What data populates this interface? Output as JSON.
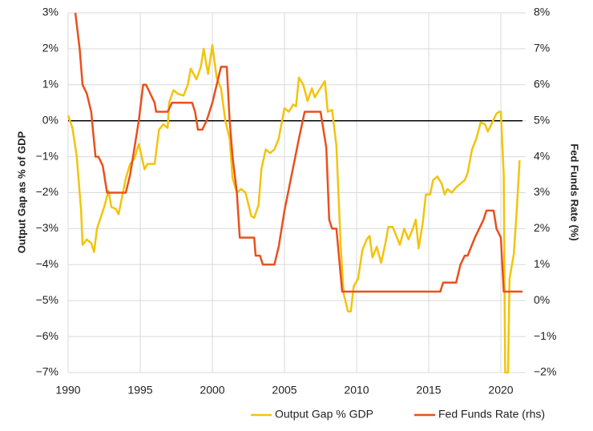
{
  "chart_data": {
    "type": "line",
    "xlim": [
      1990,
      2021.5
    ],
    "xticks": [
      1990,
      1995,
      2000,
      2005,
      2010,
      2015,
      2020
    ],
    "ylim": [
      -7,
      3
    ],
    "yticks": [
      {
        "value": -7,
        "label": "−7%"
      },
      {
        "value": -6,
        "label": "−6%"
      },
      {
        "value": -5,
        "label": "−5%"
      },
      {
        "value": -4,
        "label": "−4%"
      },
      {
        "value": -3,
        "label": "−3%"
      },
      {
        "value": -2,
        "label": "−2%"
      },
      {
        "value": -1,
        "label": "−1%"
      },
      {
        "value": 0,
        "label": "0%"
      },
      {
        "value": 1,
        "label": "1%"
      },
      {
        "value": 2,
        "label": "2%"
      },
      {
        "value": 3,
        "label": "3%"
      }
    ],
    "y2lim": [
      -2,
      8
    ],
    "y2ticks": [
      {
        "value": -2,
        "label": "−2%"
      },
      {
        "value": -1,
        "label": "−1%"
      },
      {
        "value": 0,
        "label": "0%"
      },
      {
        "value": 1,
        "label": "1%"
      },
      {
        "value": 2,
        "label": "2%"
      },
      {
        "value": 3,
        "label": "3%"
      },
      {
        "value": 4,
        "label": "4%"
      },
      {
        "value": 5,
        "label": "5%"
      },
      {
        "value": 6,
        "label": "6%"
      },
      {
        "value": 7,
        "label": "7%"
      },
      {
        "value": 8,
        "label": "8%"
      }
    ],
    "ylabel": "Output Gap as % of GDP",
    "y2label": "Fed Funds Rate (%)",
    "grid": true,
    "hline": 0,
    "legend": "bottom",
    "series": [
      {
        "name": "Output Gap % GDP",
        "color": "#f2c40c",
        "axis": "y",
        "x": [
          1990.0,
          1990.3,
          1990.6,
          1990.9,
          1991.0,
          1991.3,
          1991.6,
          1991.8,
          1992.0,
          1992.5,
          1992.8,
          1993.0,
          1993.3,
          1993.5,
          1993.8,
          1994.0,
          1994.3,
          1994.6,
          1994.9,
          1995.3,
          1995.5,
          1996.0,
          1996.3,
          1996.6,
          1996.9,
          1997.0,
          1997.3,
          1997.6,
          1998.0,
          1998.3,
          1998.5,
          1998.9,
          1999.2,
          1999.4,
          1999.7,
          2000.0,
          2000.3,
          2000.6,
          2000.9,
          2001.2,
          2001.4,
          2001.7,
          2002.0,
          2002.3,
          2002.7,
          2002.9,
          2003.2,
          2003.4,
          2003.7,
          2004.0,
          2004.3,
          2004.6,
          2005.0,
          2005.3,
          2005.6,
          2005.8,
          2006.0,
          2006.3,
          2006.6,
          2006.9,
          2007.1,
          2007.4,
          2007.8,
          2008.0,
          2008.3,
          2008.6,
          2008.9,
          2009.1,
          2009.4,
          2009.6,
          2009.8,
          2010.1,
          2010.4,
          2010.7,
          2010.9,
          2011.1,
          2011.4,
          2011.7,
          2012.0,
          2012.2,
          2012.5,
          2012.8,
          2013.0,
          2013.3,
          2013.6,
          2013.9,
          2014.1,
          2014.3,
          2014.6,
          2014.8,
          2015.1,
          2015.3,
          2015.6,
          2015.9,
          2016.1,
          2016.3,
          2016.6,
          2016.9,
          2017.2,
          2017.5,
          2017.7,
          2018.0,
          2018.3,
          2018.6,
          2018.9,
          2019.1,
          2019.4,
          2019.7,
          2019.9,
          2020.0,
          2020.2,
          2020.3,
          2020.5,
          2020.6,
          2020.9,
          2021.1,
          2021.3
        ],
        "values": [
          0.15,
          -0.2,
          -1.0,
          -2.5,
          -3.45,
          -3.3,
          -3.4,
          -3.65,
          -3.0,
          -2.4,
          -1.95,
          -2.4,
          -2.45,
          -2.6,
          -2.0,
          -1.6,
          -1.2,
          -1.05,
          -0.65,
          -1.35,
          -1.2,
          -1.2,
          -0.25,
          -0.1,
          -0.2,
          0.5,
          0.85,
          0.75,
          0.7,
          1.0,
          1.45,
          1.15,
          1.5,
          2.0,
          1.3,
          2.1,
          1.2,
          0.9,
          0.0,
          -0.5,
          -1.6,
          -2.0,
          -1.9,
          -2.0,
          -2.65,
          -2.7,
          -2.35,
          -1.35,
          -0.8,
          -0.9,
          -0.8,
          -0.5,
          0.35,
          0.25,
          0.45,
          0.4,
          1.2,
          1.0,
          0.55,
          0.9,
          0.65,
          0.85,
          1.1,
          0.25,
          0.3,
          -0.7,
          -3.5,
          -4.8,
          -5.3,
          -5.3,
          -4.6,
          -4.4,
          -3.6,
          -3.3,
          -3.2,
          -3.8,
          -3.5,
          -3.95,
          -3.4,
          -2.95,
          -2.95,
          -3.25,
          -3.45,
          -3.0,
          -3.3,
          -3.0,
          -2.75,
          -3.55,
          -2.8,
          -2.05,
          -2.05,
          -1.65,
          -1.55,
          -1.75,
          -2.05,
          -1.9,
          -2.0,
          -1.85,
          -1.75,
          -1.65,
          -1.45,
          -0.8,
          -0.5,
          -0.05,
          -0.1,
          -0.3,
          -0.05,
          0.2,
          0.25,
          0.25,
          -1.5,
          -7.0,
          -7.0,
          -4.4,
          -3.7,
          -2.5,
          -1.1
        ]
      },
      {
        "name": "Fed Funds Rate (rhs)",
        "color": "#e9501e",
        "axis": "y2",
        "x": [
          1990.5,
          1990.8,
          1991.0,
          1991.3,
          1991.6,
          1991.9,
          1992.1,
          1992.4,
          1992.7,
          1993.0,
          1994.0,
          1994.3,
          1994.6,
          1994.9,
          1995.2,
          1995.4,
          1995.7,
          1996.0,
          1996.1,
          1996.9,
          1997.2,
          1998.6,
          1998.8,
          1999.0,
          1999.3,
          1999.6,
          2000.0,
          2000.3,
          2000.6,
          2001.0,
          2001.2,
          2001.4,
          2001.7,
          2001.9,
          2002.9,
          2003.0,
          2003.3,
          2003.5,
          2004.3,
          2004.6,
          2005.0,
          2005.5,
          2006.0,
          2006.4,
          2007.5,
          2007.9,
          2008.1,
          2008.3,
          2008.6,
          2009.0,
          2015.8,
          2016.0,
          2016.9,
          2017.2,
          2017.5,
          2017.7,
          2018.2,
          2018.5,
          2018.8,
          2019.0,
          2019.5,
          2019.7,
          2020.0,
          2020.2,
          2021.5
        ],
        "values": [
          8.0,
          7.0,
          6.0,
          5.75,
          5.25,
          4.0,
          4.0,
          3.75,
          3.0,
          3.0,
          3.0,
          3.5,
          4.25,
          5.0,
          6.0,
          6.0,
          5.75,
          5.5,
          5.25,
          5.25,
          5.5,
          5.5,
          5.25,
          4.75,
          4.75,
          5.0,
          5.5,
          6.0,
          6.5,
          6.5,
          5.0,
          4.0,
          3.0,
          1.75,
          1.75,
          1.25,
          1.25,
          1.0,
          1.0,
          1.5,
          2.5,
          3.5,
          4.5,
          5.25,
          5.25,
          4.25,
          2.25,
          2.0,
          2.0,
          0.25,
          0.25,
          0.5,
          0.5,
          1.0,
          1.25,
          1.25,
          1.75,
          2.0,
          2.25,
          2.5,
          2.5,
          2.0,
          1.75,
          0.25,
          0.25
        ]
      }
    ]
  }
}
